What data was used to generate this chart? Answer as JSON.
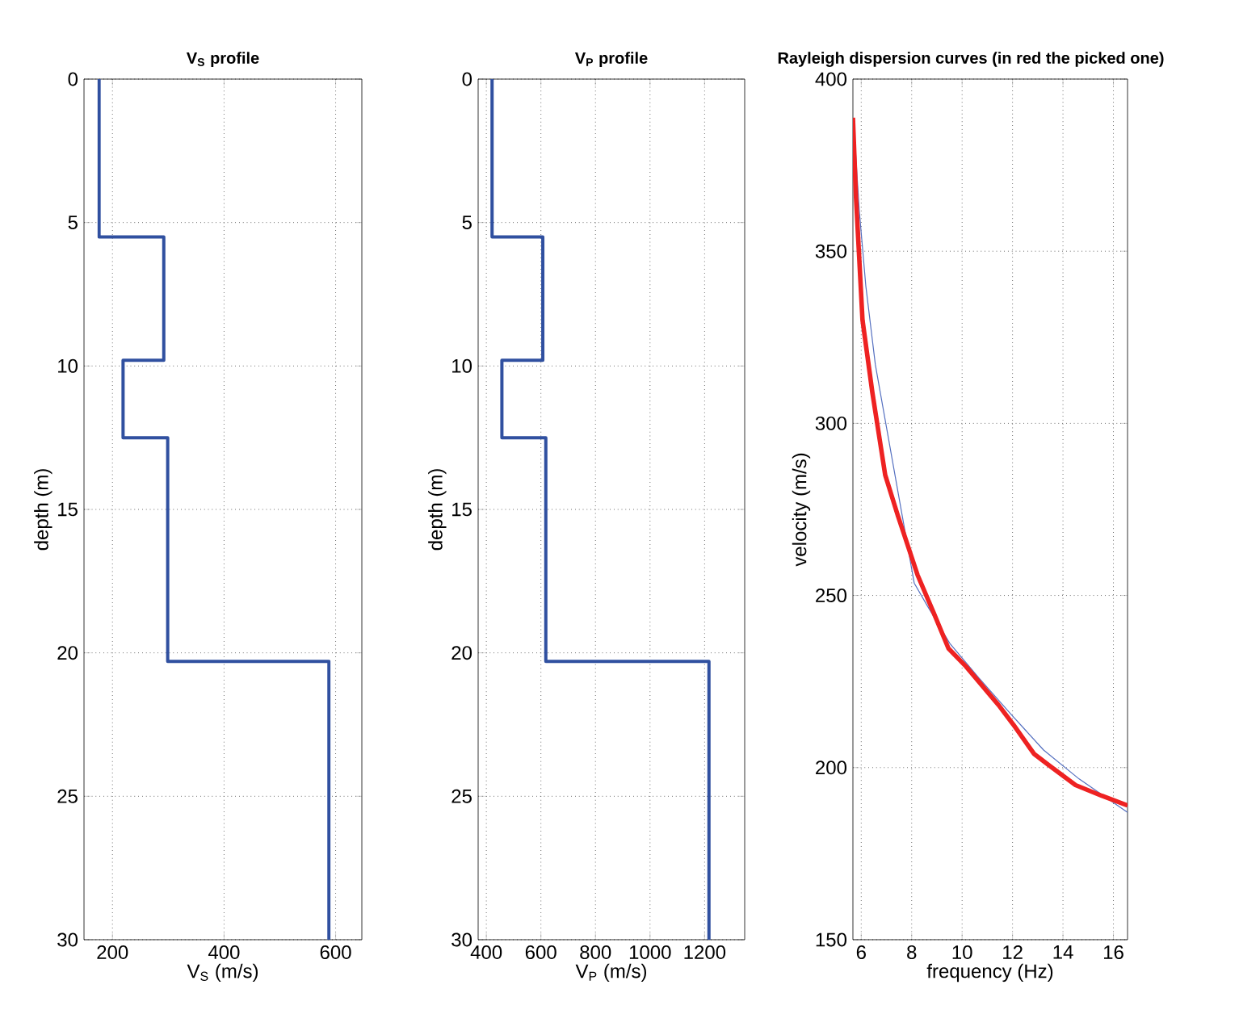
{
  "chart_data": [
    {
      "type": "line",
      "title": "V$_{S}$ profile",
      "xlabel": "V$_{S}$ (m/s)",
      "ylabel": "depth (m)",
      "xlim": [
        149,
        647
      ],
      "ylim": [
        30,
        0
      ],
      "xticks": [
        200,
        400,
        600
      ],
      "yticks": [
        0,
        5,
        10,
        15,
        20,
        25,
        30
      ],
      "grid": true,
      "series": [
        {
          "color": "#3050a0",
          "x": [
            176,
            176,
            292,
            292,
            219,
            219,
            299,
            299,
            588,
            588
          ],
          "values": [
            0,
            5.5,
            5.5,
            9.8,
            9.8,
            12.5,
            12.5,
            20.3,
            20.3,
            30
          ]
        }
      ]
    },
    {
      "type": "line",
      "title": "V$_{P}$ profile",
      "xlabel": "V$_{P}$ (m/s)",
      "ylabel": "depth (m)",
      "xlim": [
        370,
        1347
      ],
      "ylim": [
        30,
        0
      ],
      "xticks": [
        400,
        600,
        800,
        1000,
        1200
      ],
      "yticks": [
        0,
        5,
        10,
        15,
        20,
        25,
        30
      ],
      "grid": true,
      "series": [
        {
          "color": "#3050a0",
          "x": [
            421,
            421,
            607,
            607,
            457,
            457,
            618,
            618,
            1216,
            1216
          ],
          "values": [
            0,
            5.5,
            5.5,
            9.8,
            9.8,
            12.5,
            12.5,
            20.3,
            20.3,
            30
          ]
        }
      ]
    },
    {
      "type": "line",
      "title": "Rayleigh dispersion curves (in red the picked one)",
      "xlabel": "frequency (Hz)",
      "ylabel": "velocity (m/s)",
      "xlim": [
        5.67,
        16.56
      ],
      "ylim": [
        150,
        400
      ],
      "xticks": [
        6,
        8,
        10,
        12,
        14,
        16
      ],
      "yticks": [
        150,
        200,
        250,
        300,
        350,
        400
      ],
      "grid": true,
      "series": [
        {
          "color": "#5570c0",
          "x": [
            5.72,
            5.92,
            6.18,
            6.56,
            6.95,
            7.59,
            8.1,
            8.62,
            9.51,
            10.67,
            11.95,
            13.23,
            14.64,
            16.56
          ],
          "values": [
            385,
            362,
            340,
            317,
            null,
            null,
            253.6,
            247,
            236.1,
            226,
            215.4,
            205.1,
            196.7,
            187
          ]
        },
        {
          "color": "#ee2222",
          "x": [
            5.67,
            5.79,
            6.05,
            6.44,
            6.95,
            7.46,
            8.23,
            8.87,
            9.46,
            10.15,
            11.44,
            12.03,
            12.85,
            13.49,
            14.5,
            15.54,
            16.56
          ],
          "values": [
            388.8,
            366,
            330,
            309,
            285,
            273,
            256,
            245,
            234.6,
            229.4,
            218.2,
            212.5,
            204,
            200.4,
            194.9,
            191.8,
            189
          ]
        }
      ]
    }
  ]
}
